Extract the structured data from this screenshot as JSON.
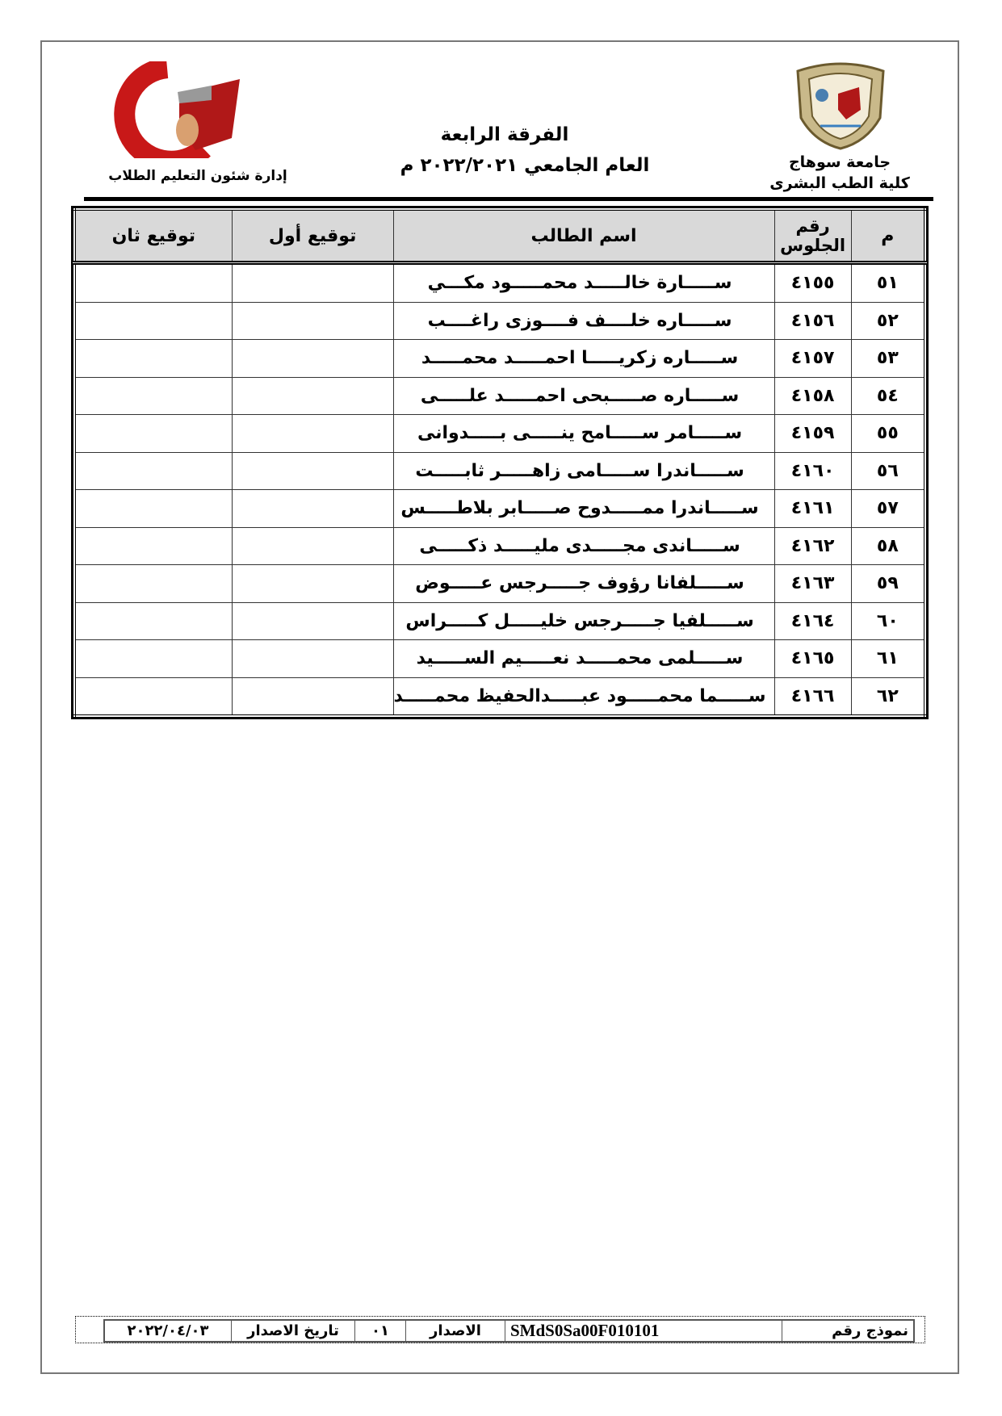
{
  "header": {
    "university": "جامعة سوهاج",
    "faculty": "كلية الطب البشرى",
    "level": "الفرقة الرابعة",
    "academic_year": "العام الجامعي ٢٠٢٢/٢٠٢١ م",
    "department": "إدارة شئون التعليم الطلاب",
    "left_logo_text": "جامعة سوهاج كلية الطب",
    "right_logo_text": "جامعة سوهاج"
  },
  "table": {
    "columns": [
      "م",
      "رقم الجلوس",
      "اسم الطالب",
      "توقيع أول",
      "توقيع ثان"
    ],
    "rows": [
      {
        "no": "٥١",
        "seat": "٤١٥٥",
        "name": "ســـــارة خالـــــد محمـــــود مكـــي"
      },
      {
        "no": "٥٢",
        "seat": "٤١٥٦",
        "name": "ســـــاره خلــــف فــــوزى راغــــب"
      },
      {
        "no": "٥٣",
        "seat": "٤١٥٧",
        "name": "ســـــاره زكريـــــا احمـــــد محمـــــد"
      },
      {
        "no": "٥٤",
        "seat": "٤١٥٨",
        "name": "ســـــاره صـــــبحى احمـــــد علـــــى"
      },
      {
        "no": "٥٥",
        "seat": "٤١٥٩",
        "name": "ســـــامر ســـــامح ينـــــى بـــــدوانى"
      },
      {
        "no": "٥٦",
        "seat": "٤١٦٠",
        "name": "ســـــاندرا ســـــامى زاهـــــر ثابـــــت"
      },
      {
        "no": "٥٧",
        "seat": "٤١٦١",
        "name": "ســـــاندرا ممـــــدوح صـــــابر بلاطـــــس"
      },
      {
        "no": "٥٨",
        "seat": "٤١٦٢",
        "name": "ســـــاندى مجـــــدى مليـــــد ذكـــــى"
      },
      {
        "no": "٥٩",
        "seat": "٤١٦٣",
        "name": "ســـــلفانا رؤوف جـــــرجس عـــــوض"
      },
      {
        "no": "٦٠",
        "seat": "٤١٦٤",
        "name": "ســـــلفيا جـــــرجس خليـــــل كـــــراس"
      },
      {
        "no": "٦١",
        "seat": "٤١٦٥",
        "name": "ســـــلمى محمـــــد نعـــــيم الســـــيد"
      },
      {
        "no": "٦٢",
        "seat": "٤١٦٦",
        "name": "ســـــما محمـــــود عبـــــدالحفيظ محمـــــد"
      }
    ]
  },
  "footer": {
    "form_label": "نموذج رقم",
    "form_code": "SMdS0Sa00F010101",
    "version_label": "الاصدار",
    "version": "٠١",
    "issue_date_label": "تاريخ الاصدار",
    "issue_date": "٢٠٢٢/٠٤/٠٣"
  }
}
